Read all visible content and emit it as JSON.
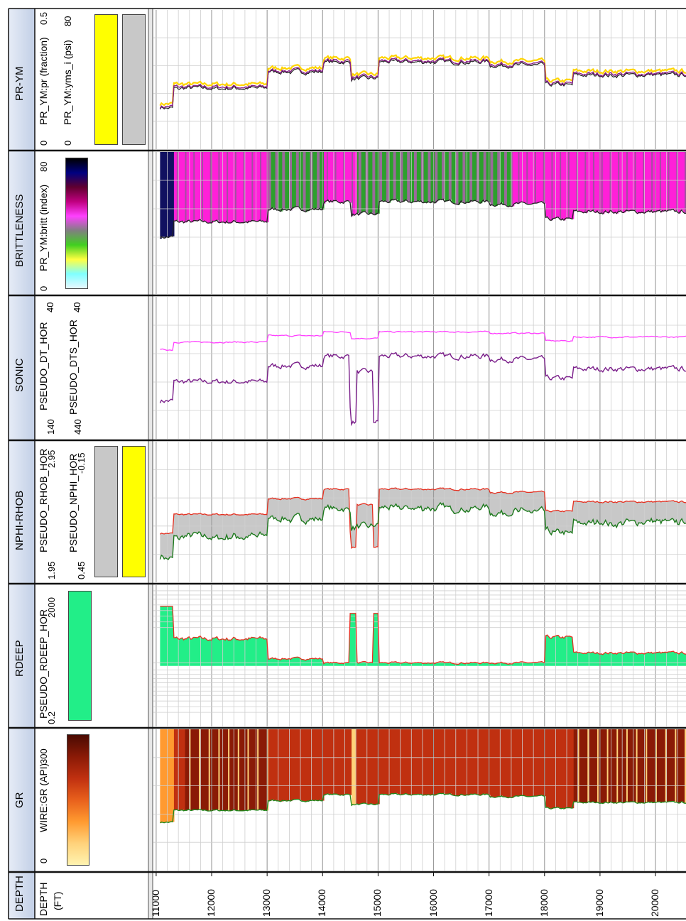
{
  "chart_data": {
    "type": "well_log",
    "depth_axis": {
      "title": "DEPTH",
      "unit_label": "DEPTH (FT)",
      "range": [
        10950,
        20550
      ],
      "ticks": [
        11000,
        12000,
        13000,
        14000,
        15000,
        16000,
        17000,
        18000,
        19000,
        20000
      ],
      "tick_labels": [
        "11000",
        "12000",
        "13000",
        "14000",
        "15000",
        "16000",
        "17000",
        "18000",
        "19000",
        "20000"
      ]
    },
    "tracks": [
      {
        "name": "GR",
        "curves": [
          {
            "label": "WIRE:GR (API)",
            "color": "#1e8a1e",
            "scale_min": "0",
            "scale_max": "300"
          }
        ],
        "colormap": [
          "#fff3b0",
          "#ffd27a",
          "#ff9a30",
          "#e8601c",
          "#c03010",
          "#8a1a06",
          "#4a0a02"
        ]
      },
      {
        "name": "RDEEP",
        "curves": [
          {
            "label": "PSEUDO_RDEEP_HOR",
            "color": "#e53020",
            "scale_min": "0.2",
            "scale_max": "2000",
            "scale": "log"
          }
        ],
        "fill_colors": [
          "#22ee88"
        ]
      },
      {
        "name": "NPHI-RHOB",
        "curves": [
          {
            "label": "PSEUDO_RHOB_HOR",
            "color": "#e53020",
            "scale_min": "1.95",
            "scale_max": "2.95"
          },
          {
            "label": "PSEUDO_NPHI_HOR",
            "color": "#1e7a1e",
            "scale_min": "0.45",
            "scale_max": "-0.15"
          }
        ],
        "fill_colors": [
          "#c8c8c8",
          "#ffff00"
        ]
      },
      {
        "name": "SONIC",
        "curves": [
          {
            "label": "PSEUDO_DT_HOR",
            "color": "#7a1e8a",
            "scale_min": "140",
            "scale_max": "40"
          },
          {
            "label": "PSEUDO_DTS_HOR",
            "color": "#ff40ff",
            "scale_min": "440",
            "scale_max": "40"
          }
        ]
      },
      {
        "name": "BRITTLENESS",
        "curves": [
          {
            "label": "PR_YM:britt (index)",
            "color": "#222222",
            "scale_min": "0",
            "scale_max": "80"
          }
        ],
        "colormap": [
          "#e8f8ff",
          "#80ffff",
          "#ffff40",
          "#40d020",
          "#808080",
          "#ff40ff",
          "#c00080",
          "#600030",
          "#000080",
          "#000000"
        ]
      },
      {
        "name": "PR-YM",
        "curves": [
          {
            "label": "PR_YM:pr (fraction)",
            "color": "#222222",
            "scale_min": "0",
            "scale_max": "0.5"
          },
          {
            "label": "PR_YM:yms_i (psi)",
            "color": "#8a1e8a",
            "scale_min": "0",
            "scale_max": "80"
          }
        ],
        "fill_colors": [
          "#ffff00",
          "#c8c8c8"
        ]
      }
    ],
    "colors": {
      "header_bg": "#d5dff0",
      "grid": "#bdbdbd",
      "separator": "#111111"
    }
  }
}
